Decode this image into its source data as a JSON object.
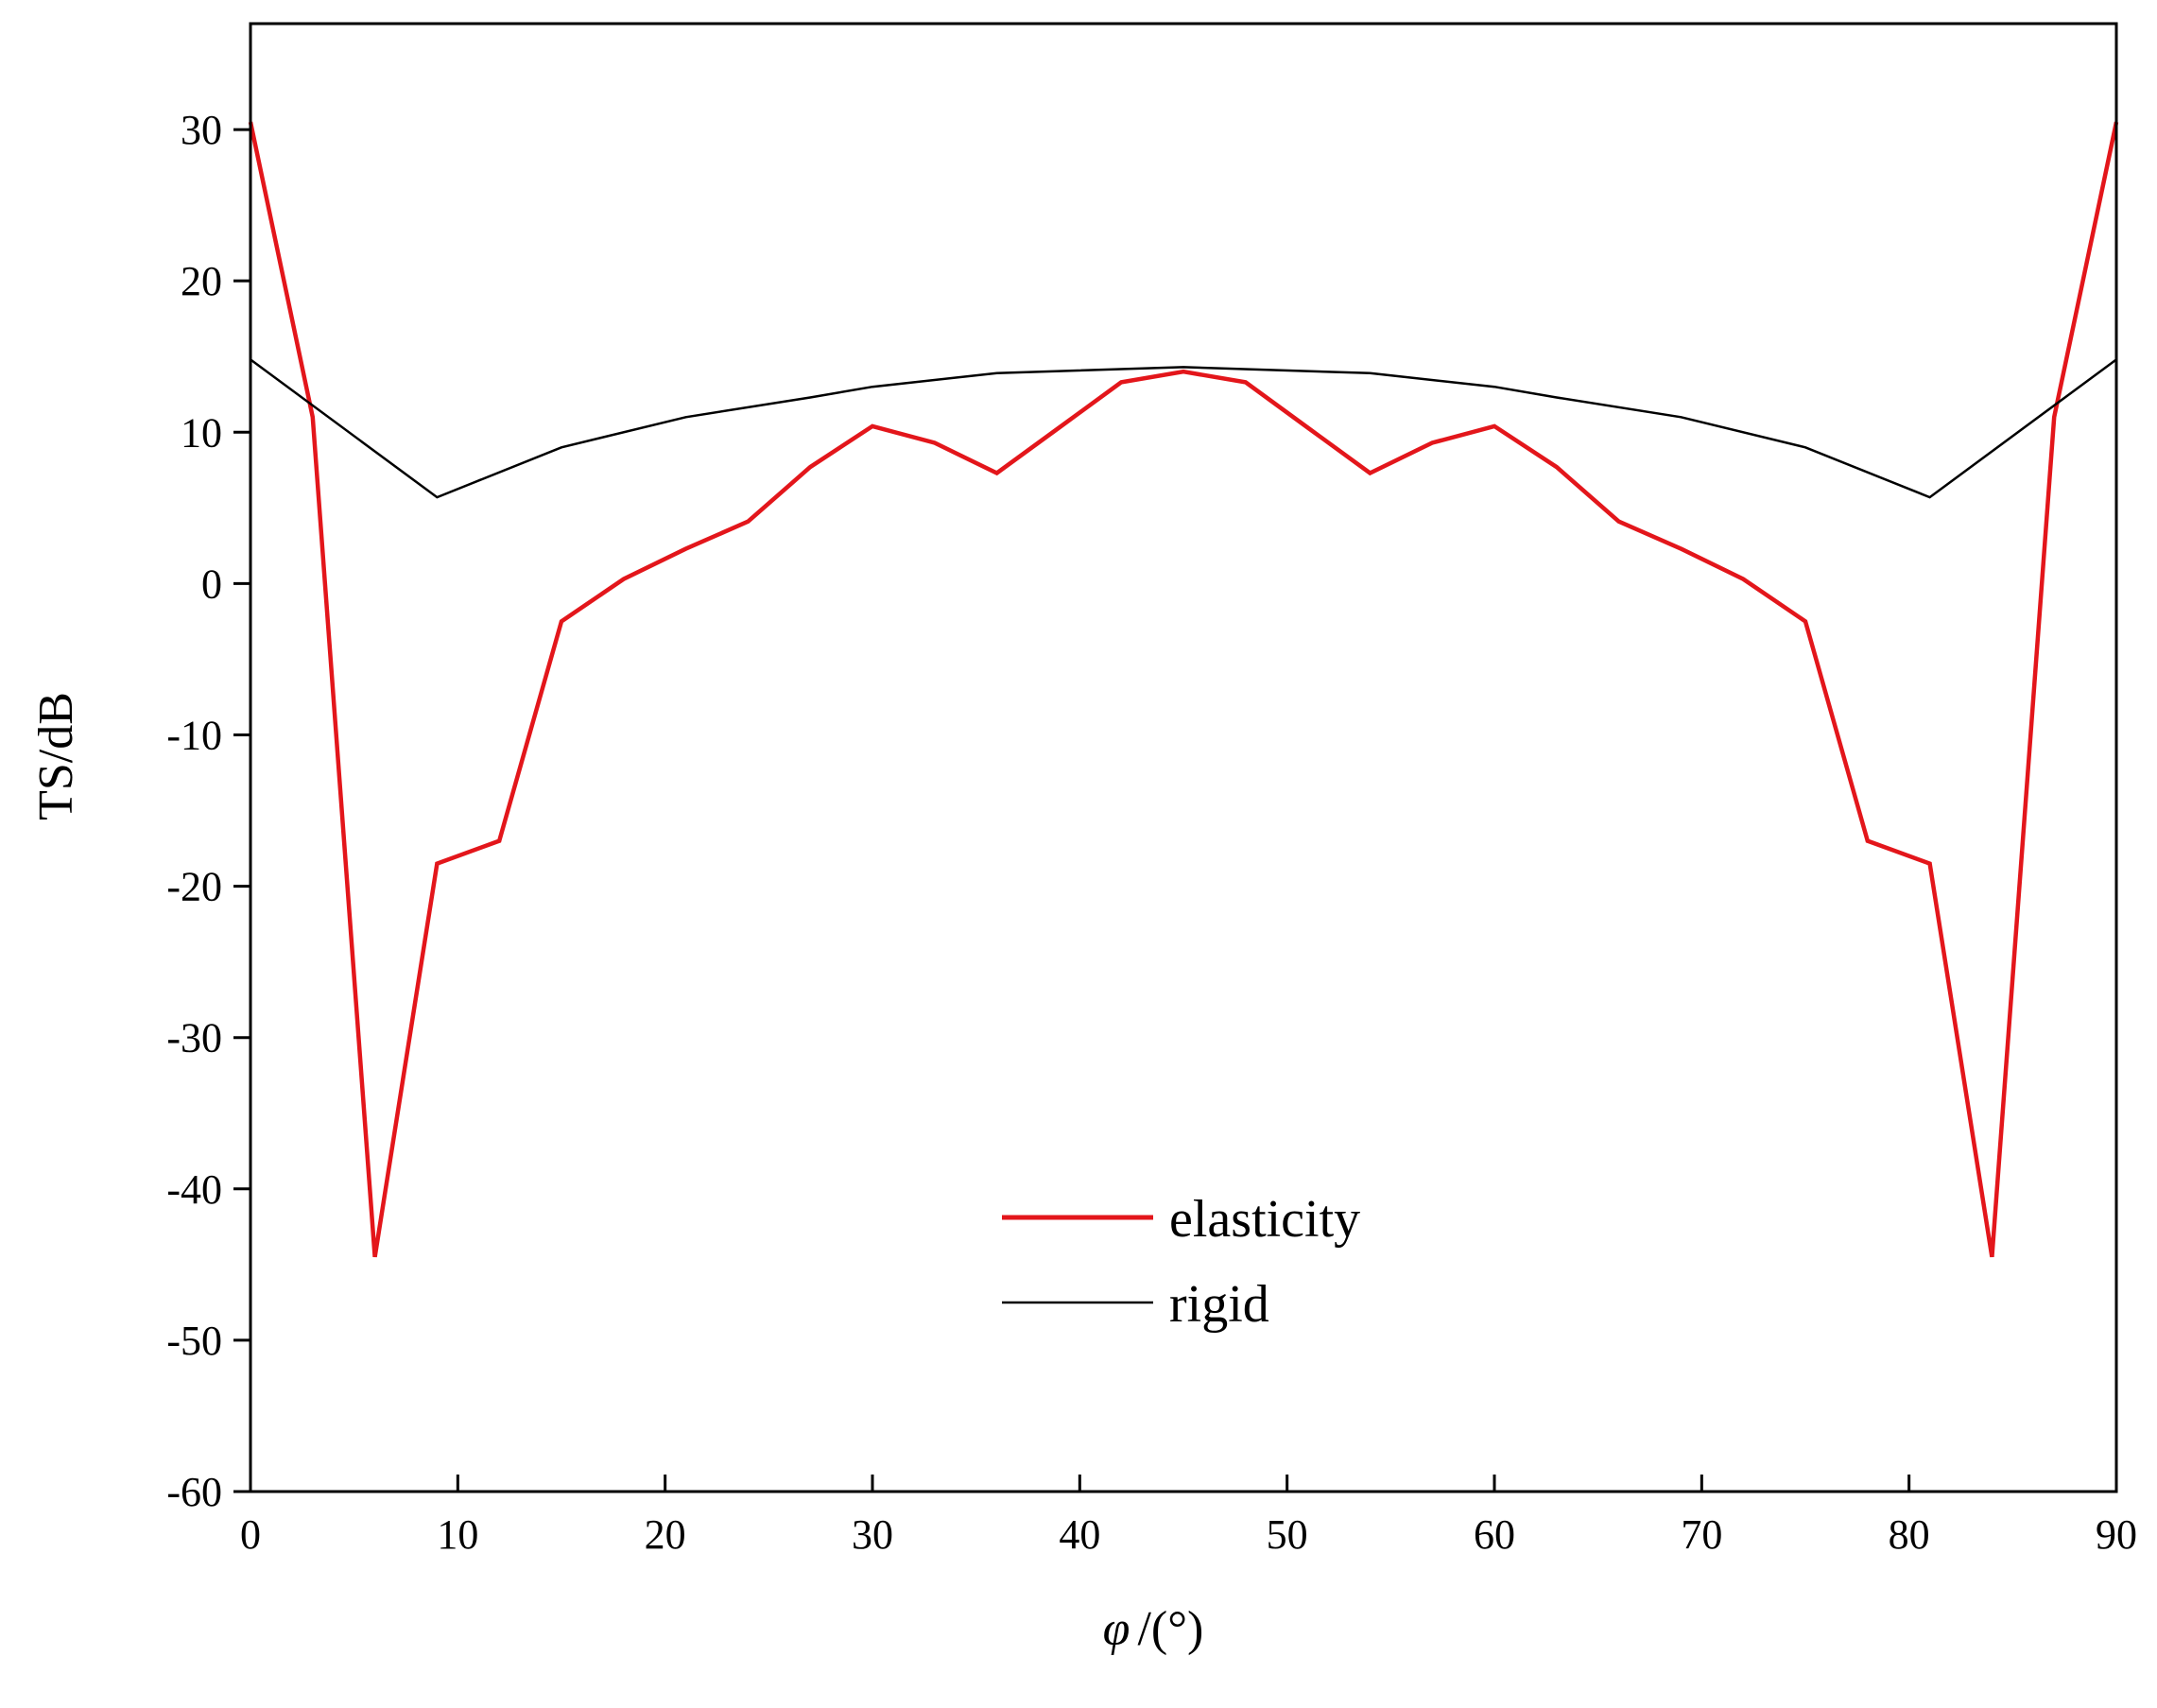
{
  "chart_data": {
    "type": "line",
    "title": "",
    "xlabel_symbol": "φ",
    "xlabel_unit": "/(°)",
    "ylabel": "TS/dB",
    "xlim": [
      0,
      90
    ],
    "ylim": [
      -60,
      37
    ],
    "xticks": [
      0,
      10,
      20,
      30,
      40,
      50,
      60,
      70,
      80,
      90
    ],
    "yticks": [
      -60,
      -50,
      -40,
      -30,
      -20,
      -10,
      0,
      10,
      20,
      30
    ],
    "legend_position": "lower-center",
    "series": [
      {
        "name": "elasticity",
        "color": "#e3161b",
        "x": [
          0,
          3,
          6,
          9,
          12,
          15,
          18,
          21,
          24,
          27,
          30,
          33,
          36,
          39,
          42,
          45,
          48,
          51,
          54,
          57,
          60,
          63,
          66,
          69,
          72,
          75,
          78,
          81,
          84,
          87,
          90
        ],
        "y": [
          30.5,
          11,
          -44.5,
          -18.5,
          -17,
          -2.5,
          0.3,
          2.3,
          4.1,
          7.7,
          10.4,
          9.3,
          7.3,
          10.3,
          13.3,
          14,
          13.3,
          10.3,
          7.3,
          9.3,
          10.4,
          7.7,
          4.1,
          2.3,
          0.3,
          -2.5,
          -17,
          -18.5,
          -44.5,
          11,
          30.5
        ]
      },
      {
        "name": "rigid",
        "color": "#000000",
        "x": [
          0,
          9,
          15,
          21,
          27,
          30,
          36,
          45,
          54,
          60,
          63,
          69,
          75,
          81,
          90
        ],
        "y": [
          14.8,
          5.7,
          9,
          11,
          12.3,
          13,
          13.9,
          14.3,
          13.9,
          13,
          12.3,
          11,
          9,
          5.7,
          14.8
        ]
      }
    ]
  }
}
